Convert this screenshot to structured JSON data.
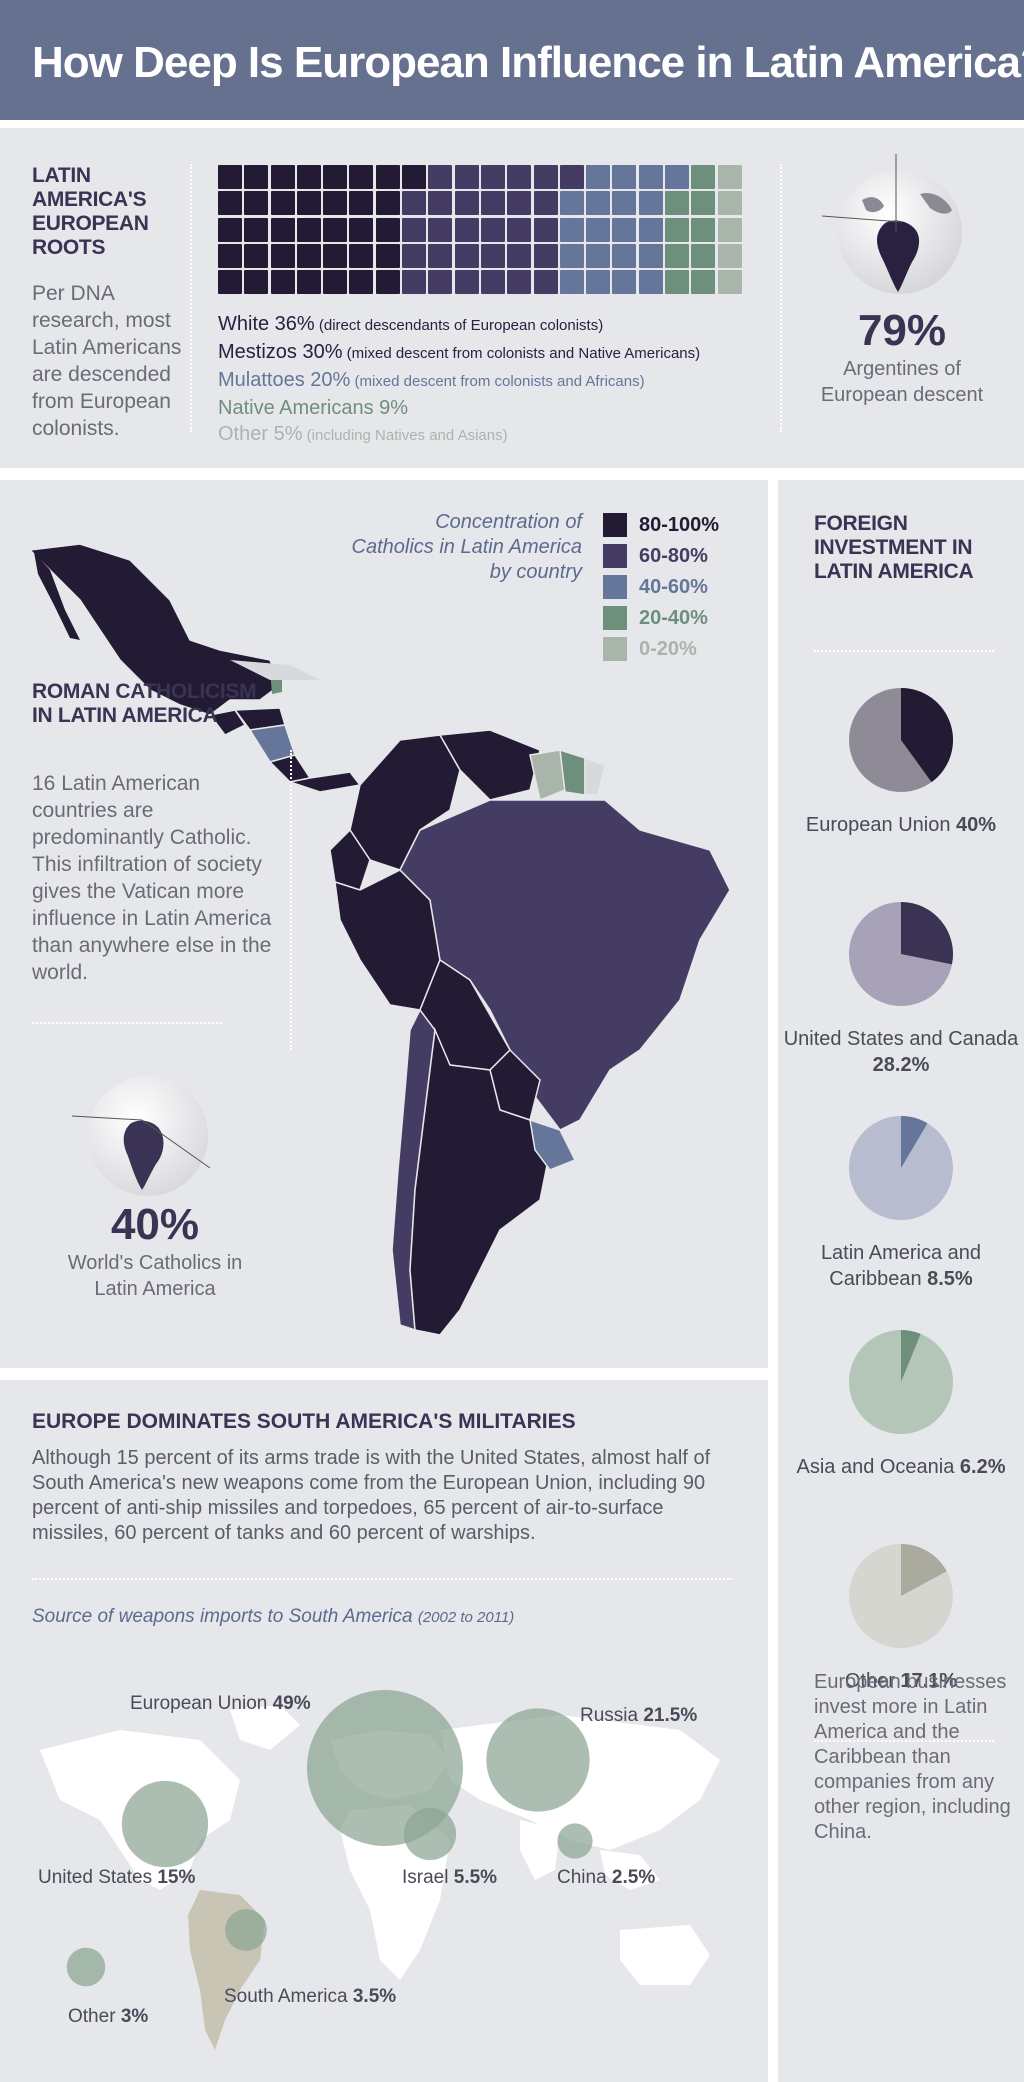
{
  "header": {
    "title": "How Deep Is European Influence in Latin America?"
  },
  "roots": {
    "title": "LATIN AMERICA'S EUROPEAN ROOTS",
    "text": "Per DNA research, most Latin Americans are descended from European colonists.",
    "legend": [
      {
        "label": "White 36%",
        "note": "(direct descendants of European colonists)",
        "color": "#231a33"
      },
      {
        "label": "Mestizos 30%",
        "note": "(mixed descent from colonists and Native Americans)",
        "color": "#453c63"
      },
      {
        "label": "Mulattoes 20%",
        "note": "(mixed descent from colonists and Africans)",
        "color": "#66759a"
      },
      {
        "label": "Native Americans 9%",
        "note": "",
        "color": "#6f8f7d"
      },
      {
        "label": "Other 5%",
        "note": "(including Natives and Asians)",
        "color": "#a9b5ab"
      }
    ],
    "stat_value": "79%",
    "stat_label": "Argentines of European descent"
  },
  "catholic": {
    "legend_title": "Concentration of Catholics in Latin America by country",
    "legend": [
      {
        "label": "80-100%",
        "color": "#231a33"
      },
      {
        "label": "60-80%",
        "color": "#453c63"
      },
      {
        "label": "40-60%",
        "color": "#66759a"
      },
      {
        "label": "20-40%",
        "color": "#6f8f7d"
      },
      {
        "label": "0-20%",
        "color": "#a9b5ab"
      }
    ],
    "title": "ROMAN CATHOLICISM IN LATIN AMERICA",
    "text": "16 Latin American countries are predominantly Catholic. This infiltration of society gives the Vatican more influence in Latin America than anywhere else in the world.",
    "stat_value": "40%",
    "stat_label": "World's Catholics in Latin America"
  },
  "investment": {
    "title": "FOREIGN INVESTMENT IN LATIN AMERICA",
    "text": "European businesses invest more in Latin America and the Caribbean than companies from any other region, including China."
  },
  "military": {
    "title": "EUROPE DOMINATES SOUTH AMERICA'S MILITARIES",
    "text": "Although 15 percent of its arms trade is with the United States, almost half of South America's new weapons come from the European Union, including 90 percent of anti-ship missiles and torpedoes, 65 percent of air-to-surface missiles, 60 percent of tanks and 60 percent of warships.",
    "subtitle": "Source of weapons imports to South America",
    "subtitle_years": "(2002 to 2011)"
  },
  "chart_data": [
    {
      "type": "waffle",
      "categories": [
        "White",
        "Mestizos",
        "Mulattoes",
        "Native Americans",
        "Other"
      ],
      "values": [
        36,
        30,
        20,
        9,
        5
      ]
    },
    {
      "type": "pie",
      "slices": [
        {
          "name": "European Union",
          "value": 40,
          "value_label": "40%",
          "color": "#231a33",
          "rest_color": "#8e8b96"
        },
        {
          "name": "United States and Canada",
          "value": 28.2,
          "value_label": "28.2%",
          "color": "#3b3353",
          "rest_color": "#a8a2b8"
        },
        {
          "name": "Latin America and Caribbean",
          "value": 8.5,
          "value_label": "8.5%",
          "color": "#66759a",
          "rest_color": "#b7bccf"
        },
        {
          "name": "Asia and Oceania",
          "value": 6.2,
          "value_label": "6.2%",
          "color": "#6f8f7d",
          "rest_color": "#b4c6b8"
        },
        {
          "name": "Other",
          "value": 17.1,
          "value_label": "17.1%",
          "color": "#aaaa9e",
          "rest_color": "#d6d6d0"
        }
      ]
    },
    {
      "type": "bubble",
      "points": [
        {
          "name": "European Union",
          "value": 49,
          "value_label": "49%"
        },
        {
          "name": "Russia",
          "value": 21.5,
          "value_label": "21.5%"
        },
        {
          "name": "United States",
          "value": 15,
          "value_label": "15%"
        },
        {
          "name": "Israel",
          "value": 5.5,
          "value_label": "5.5%"
        },
        {
          "name": "China",
          "value": 2.5,
          "value_label": "2.5%"
        },
        {
          "name": "South America",
          "value": 3.5,
          "value_label": "3.5%"
        },
        {
          "name": "Other",
          "value": 3,
          "value_label": "3%"
        }
      ]
    }
  ]
}
